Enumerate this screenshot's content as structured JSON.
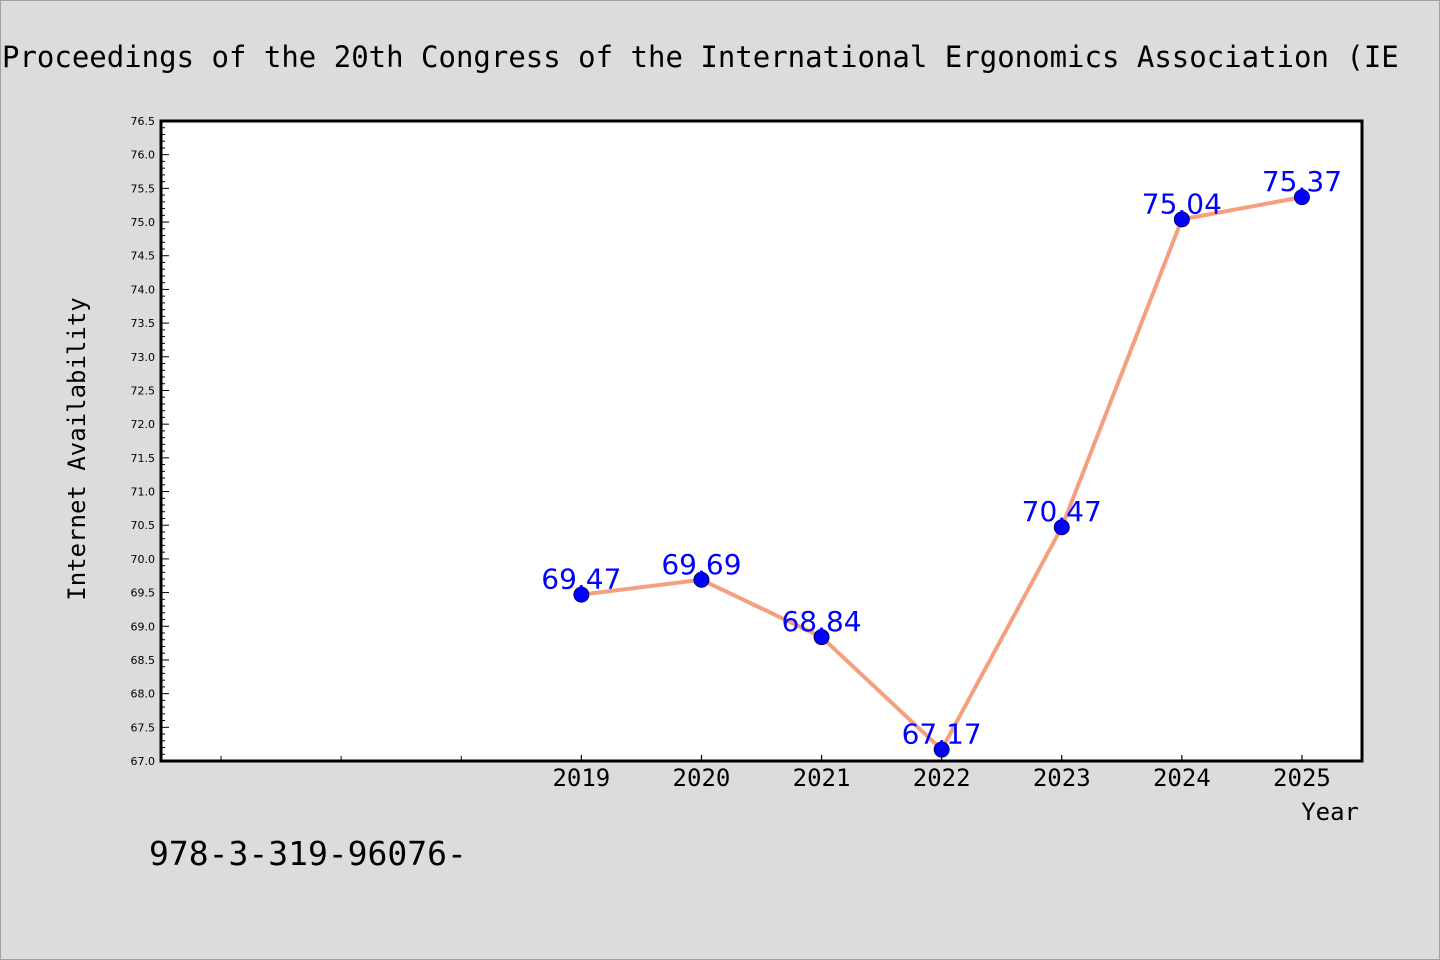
{
  "chart_data": {
    "type": "line",
    "title": "Proceedings of the 20th Congress of the International Ergonomics Association (IE",
    "xlabel": "Year",
    "ylabel": "Internet Availability",
    "ylim": [
      67.0,
      76.5
    ],
    "ytick_step": 0.5,
    "ytick_minor_step": 0.1,
    "x_labeled_ticks": [
      "2019",
      "2020",
      "2021",
      "2022",
      "2023",
      "2024",
      "2025"
    ],
    "x_unlabeled_ticks": [
      "2016",
      "2017",
      "2018"
    ],
    "x_range": [
      2015.5,
      2025.5
    ],
    "grid": false,
    "series": [
      {
        "x": [
          "2019",
          "2020",
          "2021",
          "2022",
          "2023",
          "2024",
          "2025"
        ],
        "values": [
          69.47,
          69.69,
          68.84,
          67.17,
          70.47,
          75.04,
          75.37
        ],
        "labels": [
          "69.47",
          "69.69",
          "68.84",
          "67.17",
          "70.47",
          "75.04",
          "75.37"
        ],
        "line_color": "#f4a07f",
        "marker_color": "#0000ff",
        "label_color": "#0000ff"
      }
    ]
  },
  "footer_text": "978-3-319-96076-",
  "colors": {
    "background": "#dcdcdc",
    "plot_background": "#ffffff",
    "axis": "#000000",
    "text": "#000000"
  }
}
